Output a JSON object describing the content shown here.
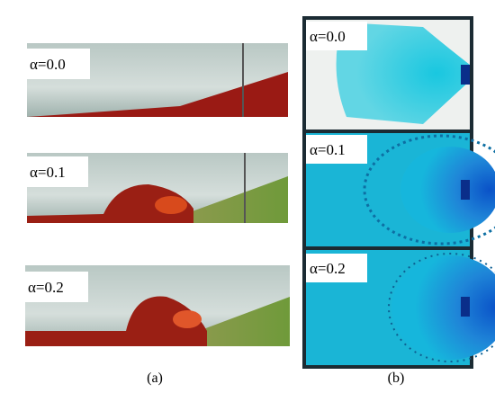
{
  "panel_a": {
    "images": [
      {
        "label": "α=0.0"
      },
      {
        "label": "α=0.1"
      },
      {
        "label": "α=0.2"
      }
    ],
    "caption": "(a)"
  },
  "panel_b": {
    "images": [
      {
        "label": "α=0.0"
      },
      {
        "label": "α=0.1"
      },
      {
        "label": "α=0.2"
      }
    ],
    "caption": "(b)"
  }
}
